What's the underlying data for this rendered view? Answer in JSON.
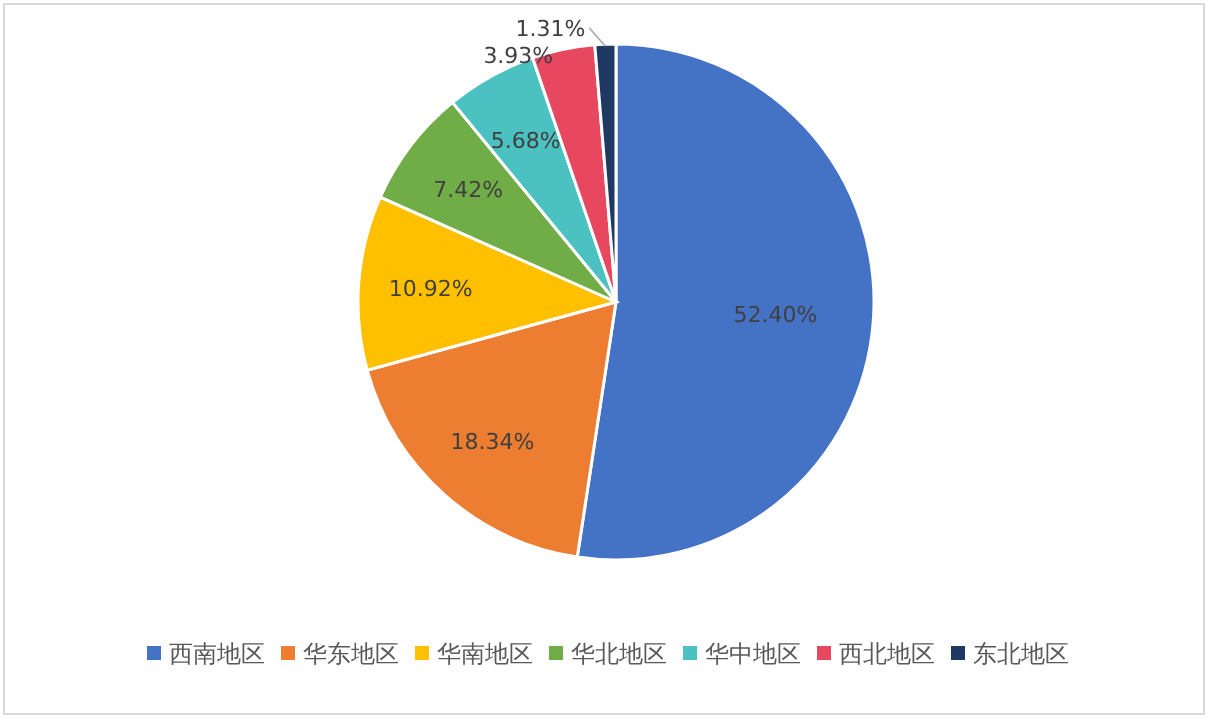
{
  "chart_data": {
    "type": "pie",
    "categories": [
      "西南地区",
      "华东地区",
      "华南地区",
      "华北地区",
      "华中地区",
      "西北地区",
      "东北地区"
    ],
    "values": [
      52.4,
      18.34,
      10.92,
      7.42,
      5.68,
      3.93,
      1.31
    ],
    "colors": [
      "#4472c4",
      "#ed7d31",
      "#ffc000",
      "#70ad47",
      "#4bc1c1",
      "#e8485f",
      "#203864"
    ],
    "data_labels": true,
    "value_labels": [
      "52.40%",
      "18.34%",
      "10.92%",
      "7.42%",
      "5.68%",
      "3.93%",
      "1.31%"
    ],
    "legend": "bottom"
  }
}
